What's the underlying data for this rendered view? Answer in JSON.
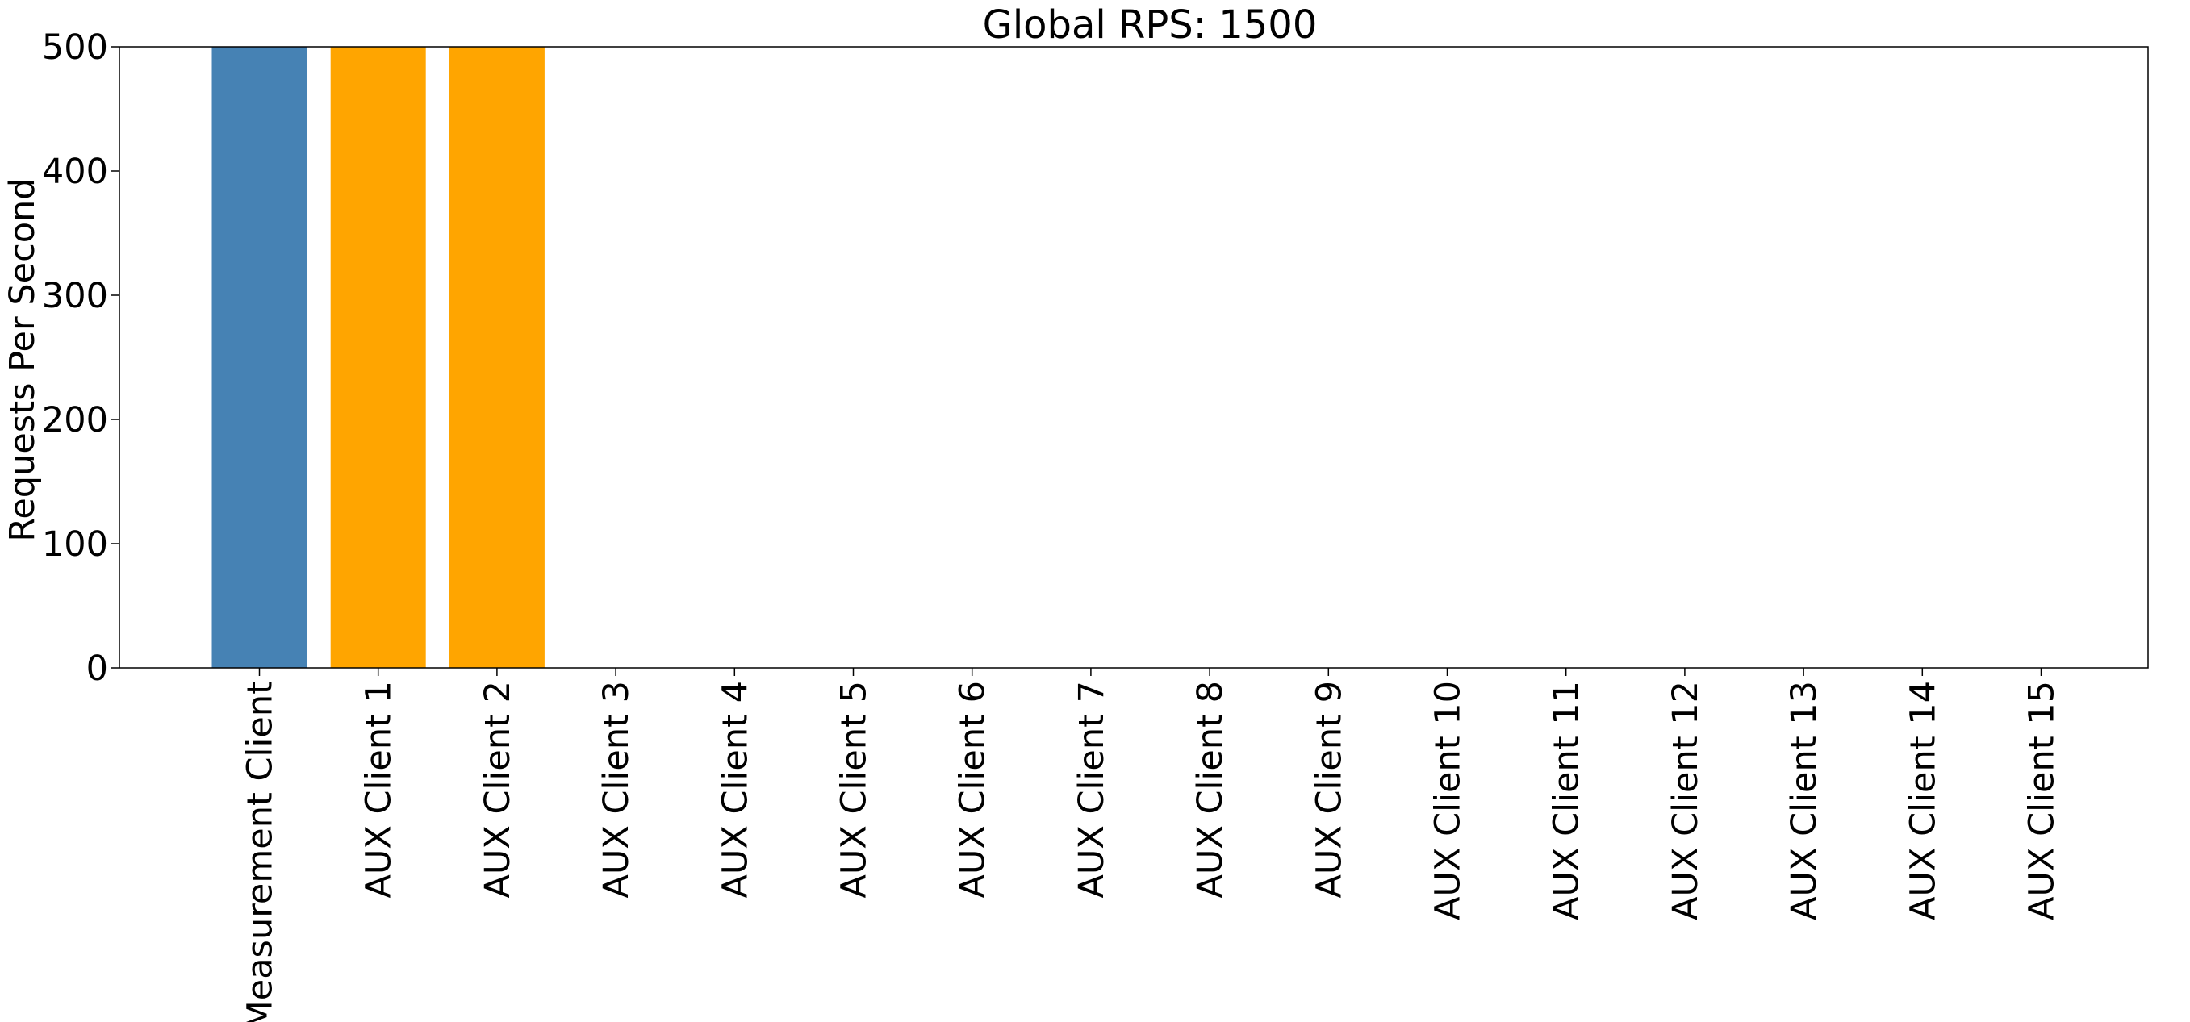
{
  "chart_data": {
    "type": "bar",
    "title": "Global RPS: 1500",
    "xlabel": "",
    "ylabel": "Requests Per Second",
    "ylim": [
      0,
      500
    ],
    "yticks": [
      0,
      100,
      200,
      300,
      400,
      500
    ],
    "categories": [
      "Measurement Client",
      "AUX Client 1",
      "AUX Client 2",
      "AUX Client 3",
      "AUX Client 4",
      "AUX Client 5",
      "AUX Client 6",
      "AUX Client 7",
      "AUX Client 8",
      "AUX Client 9",
      "AUX Client 10",
      "AUX Client 11",
      "AUX Client 12",
      "AUX Client 13",
      "AUX Client 14",
      "AUX Client 15"
    ],
    "values": [
      500,
      500,
      500,
      0,
      0,
      0,
      0,
      0,
      0,
      0,
      0,
      0,
      0,
      0,
      0,
      0
    ],
    "bar_colors": [
      "#4682b4",
      "#ffa500",
      "#ffa500",
      "#ffa500",
      "#ffa500",
      "#ffa500",
      "#ffa500",
      "#ffa500",
      "#ffa500",
      "#ffa500",
      "#ffa500",
      "#ffa500",
      "#ffa500",
      "#ffa500",
      "#ffa500",
      "#ffa500"
    ],
    "grid": false,
    "legend": "none"
  }
}
